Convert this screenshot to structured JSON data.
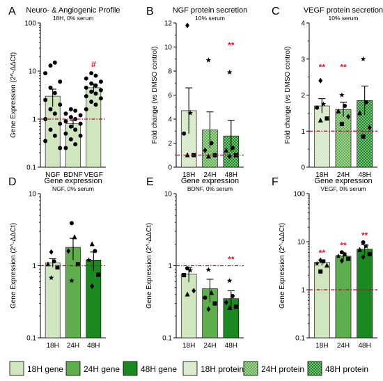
{
  "colors": {
    "g18": "#cfe6bf",
    "g24": "#5fae4d",
    "g48": "#1a8a20",
    "red": "#e8102a",
    "ref": "#a0103a",
    "ink": "#000000"
  },
  "legend": [
    {
      "label": "18H gene",
      "color": "g18",
      "pattern": false
    },
    {
      "label": "24H gene",
      "color": "g24",
      "pattern": false
    },
    {
      "label": "48H gene",
      "color": "g48",
      "pattern": false
    },
    {
      "label": "18H protein",
      "color": "g18",
      "pattern": true
    },
    {
      "label": "24H protein",
      "color": "g24",
      "pattern": true
    },
    {
      "label": "48H protein",
      "color": "g48",
      "pattern": true
    }
  ],
  "chart_data": [
    {
      "panel": "A",
      "type": "bar",
      "scale": "log",
      "title": "Neuro- & Angiogenic Profile",
      "subtitle": "18H, 0% serum",
      "ylabel": "Gene Expression (2^-ΔΔCt)",
      "ylim": [
        0.1,
        100
      ],
      "yticks": [
        "0.1",
        "1",
        "10",
        "100"
      ],
      "reference_line": 1,
      "categories": [
        "NGF",
        "BDNF",
        "VEGF"
      ],
      "values": [
        3.0,
        0.8,
        4.5
      ],
      "errors": [
        1.2,
        0.15,
        0.9
      ],
      "fills": [
        "g18",
        "g18",
        "g18"
      ],
      "patterns": [
        false,
        false,
        false
      ],
      "annotations": [
        "",
        "",
        "#"
      ],
      "points": [
        [
          {
            "v": 13,
            "m": "dot"
          },
          {
            "v": 15,
            "m": "dot"
          },
          {
            "v": 9,
            "m": "dot"
          },
          {
            "v": 6,
            "m": "dot"
          },
          {
            "v": 4.5,
            "m": "dot"
          },
          {
            "v": 3.5,
            "m": "dot"
          },
          {
            "v": 2.5,
            "m": "dot"
          },
          {
            "v": 2,
            "m": "dot"
          },
          {
            "v": 1.6,
            "m": "dot"
          },
          {
            "v": 1.3,
            "m": "dot"
          },
          {
            "v": 1.0,
            "m": "dot"
          },
          {
            "v": 0.8,
            "m": "dot"
          },
          {
            "v": 0.6,
            "m": "dot"
          },
          {
            "v": 0.45,
            "m": "dot"
          },
          {
            "v": 0.35,
            "m": "dot"
          },
          {
            "v": 0.25,
            "m": "dot"
          }
        ],
        [
          {
            "v": 1.6,
            "m": "dot"
          },
          {
            "v": 1.5,
            "m": "dot"
          },
          {
            "v": 1.3,
            "m": "dot"
          },
          {
            "v": 1.2,
            "m": "dot"
          },
          {
            "v": 1.1,
            "m": "dot"
          },
          {
            "v": 1.0,
            "m": "dot"
          },
          {
            "v": 0.9,
            "m": "dot"
          },
          {
            "v": 0.8,
            "m": "dot"
          },
          {
            "v": 0.7,
            "m": "dot"
          },
          {
            "v": 0.6,
            "m": "dot"
          },
          {
            "v": 0.5,
            "m": "dot"
          },
          {
            "v": 0.45,
            "m": "dot"
          },
          {
            "v": 0.38,
            "m": "dot"
          },
          {
            "v": 0.3,
            "m": "dot"
          },
          {
            "v": 0.25,
            "m": "dot"
          }
        ],
        [
          {
            "v": 9,
            "m": "dot"
          },
          {
            "v": 8,
            "m": "dot"
          },
          {
            "v": 7,
            "m": "dot"
          },
          {
            "v": 6,
            "m": "dot"
          },
          {
            "v": 5.5,
            "m": "dot"
          },
          {
            "v": 5,
            "m": "dot"
          },
          {
            "v": 4.5,
            "m": "dot"
          },
          {
            "v": 4,
            "m": "dot"
          },
          {
            "v": 3.7,
            "m": "dot"
          },
          {
            "v": 3.4,
            "m": "dot"
          },
          {
            "v": 3,
            "m": "dot"
          },
          {
            "v": 2.7,
            "m": "dot"
          },
          {
            "v": 2.3,
            "m": "dot"
          },
          {
            "v": 2,
            "m": "dot"
          },
          {
            "v": 1.6,
            "m": "dot"
          }
        ]
      ]
    },
    {
      "panel": "B",
      "type": "bar",
      "scale": "linear",
      "title": "NGF protein secretion",
      "subtitle": "10% serum",
      "ylabel": "Fold change (vs DMSO control)",
      "ylim": [
        0,
        12
      ],
      "yticks": [
        "0",
        "2",
        "4",
        "6",
        "8",
        "10",
        "12"
      ],
      "reference_line": 1,
      "categories": [
        "18H",
        "24H",
        "48H"
      ],
      "values": [
        4.7,
        3.1,
        2.6
      ],
      "errors": [
        1.9,
        1.5,
        1.3
      ],
      "fills": [
        "g18",
        "g24",
        "g48"
      ],
      "patterns": [
        true,
        true,
        true
      ],
      "annotations": [
        "",
        "",
        "**"
      ],
      "points": [
        [
          {
            "v": 11.8,
            "m": "diamond"
          },
          {
            "v": 4.5,
            "m": "star"
          },
          {
            "v": 2.8,
            "m": "dot"
          },
          {
            "v": 1.0,
            "m": "square"
          },
          {
            "v": 1.0,
            "m": "triangle"
          }
        ],
        [
          {
            "v": 8.9,
            "m": "star"
          },
          {
            "v": 2.0,
            "m": "dot"
          },
          {
            "v": 1.4,
            "m": "diamond"
          },
          {
            "v": 1.0,
            "m": "square"
          },
          {
            "v": 0.9,
            "m": "triangle"
          }
        ],
        [
          {
            "v": 7.9,
            "m": "star"
          },
          {
            "v": 1.6,
            "m": "dot"
          },
          {
            "v": 1.4,
            "m": "triangle"
          },
          {
            "v": 1.0,
            "m": "square"
          },
          {
            "v": 0.9,
            "m": "diamond"
          }
        ]
      ]
    },
    {
      "panel": "C",
      "type": "bar",
      "scale": "linear",
      "title": "VEGF protein secretion",
      "subtitle": "10% serum",
      "ylabel": "Fold change (vs DMSO control)",
      "ylim": [
        0,
        4
      ],
      "yticks": [
        "0",
        "1",
        "2",
        "3",
        "4"
      ],
      "reference_line": 1,
      "categories": [
        "18H",
        "24H",
        "48H"
      ],
      "values": [
        1.7,
        1.6,
        1.85
      ],
      "errors": [
        0.2,
        0.2,
        0.4
      ],
      "fills": [
        "g18",
        "g24",
        "g48"
      ],
      "patterns": [
        true,
        true,
        true
      ],
      "annotations": [
        "**",
        "**",
        ""
      ],
      "points": [
        [
          {
            "v": 2.4,
            "m": "diamond"
          },
          {
            "v": 1.75,
            "m": "star"
          },
          {
            "v": 1.65,
            "m": "dot"
          },
          {
            "v": 1.35,
            "m": "square"
          },
          {
            "v": 1.3,
            "m": "triangle"
          }
        ],
        [
          {
            "v": 2.0,
            "m": "star"
          },
          {
            "v": 1.7,
            "m": "dot"
          },
          {
            "v": 1.55,
            "m": "triangle"
          },
          {
            "v": 1.4,
            "m": "diamond"
          },
          {
            "v": 1.2,
            "m": "square"
          }
        ],
        [
          {
            "v": 3.0,
            "m": "star"
          },
          {
            "v": 1.8,
            "m": "dot"
          },
          {
            "v": 1.5,
            "m": "triangle"
          },
          {
            "v": 1.1,
            "m": "diamond"
          },
          {
            "v": 0.85,
            "m": "square"
          }
        ]
      ]
    },
    {
      "panel": "D",
      "type": "bar",
      "scale": "log",
      "title": "Gene expression",
      "subtitle": "NGF, 0% serum",
      "ylabel": "Gene Expression (2^-ΔΔCt)",
      "ylim": [
        0.1,
        10
      ],
      "yticks": [
        "0.1",
        "1",
        "10"
      ],
      "reference_line": 1,
      "categories": [
        "18H",
        "24H",
        "48H"
      ],
      "values": [
        1.1,
        1.8,
        1.2
      ],
      "errors": [
        0.15,
        0.6,
        0.35
      ],
      "fills": [
        "g18",
        "g24",
        "g48"
      ],
      "patterns": [
        false,
        false,
        false
      ],
      "annotations": [
        "",
        "",
        ""
      ],
      "points": [
        [
          {
            "v": 1.55,
            "m": "diamond"
          },
          {
            "v": 1.15,
            "m": "dot"
          },
          {
            "v": 1.05,
            "m": "triangle"
          },
          {
            "v": 0.95,
            "m": "square"
          },
          {
            "v": 0.68,
            "m": "star"
          }
        ],
        [
          {
            "v": 3.9,
            "m": "dot"
          },
          {
            "v": 2.5,
            "m": "triangle"
          },
          {
            "v": 1.6,
            "m": "diamond"
          },
          {
            "v": 1.05,
            "m": "square"
          },
          {
            "v": 0.62,
            "m": "star"
          }
        ],
        [
          {
            "v": 2.0,
            "m": "triangle"
          },
          {
            "v": 1.6,
            "m": "dot"
          },
          {
            "v": 1.2,
            "m": "star"
          },
          {
            "v": 0.75,
            "m": "square"
          },
          {
            "v": 0.52,
            "m": "diamond"
          }
        ]
      ]
    },
    {
      "panel": "E",
      "type": "bar",
      "scale": "log",
      "title": "Gene expression",
      "subtitle": "BDNF, 0% serum",
      "ylabel": "Gene Expression (2^-ΔΔCt)",
      "ylim": [
        0.1,
        10
      ],
      "yticks": [
        "0.1",
        "1",
        "10"
      ],
      "reference_line": 1,
      "categories": [
        "18H",
        "24H",
        "48H"
      ],
      "values": [
        0.77,
        0.48,
        0.35
      ],
      "errors": [
        0.18,
        0.17,
        0.1
      ],
      "fills": [
        "g18",
        "g24",
        "g48"
      ],
      "patterns": [
        false,
        false,
        false
      ],
      "annotations": [
        "",
        "",
        "**"
      ],
      "points": [
        [
          {
            "v": 0.92,
            "m": "dot"
          },
          {
            "v": 0.86,
            "m": "star"
          },
          {
            "v": 0.74,
            "m": "square"
          },
          {
            "v": 0.45,
            "m": "diamond"
          },
          {
            "v": 0.4,
            "m": "triangle"
          }
        ],
        [
          {
            "v": 0.88,
            "m": "star"
          },
          {
            "v": 0.42,
            "m": "triangle"
          },
          {
            "v": 0.36,
            "m": "dot"
          },
          {
            "v": 0.3,
            "m": "square"
          },
          {
            "v": 0.25,
            "m": "diamond"
          }
        ],
        [
          {
            "v": 0.62,
            "m": "star"
          },
          {
            "v": 0.38,
            "m": "dot"
          },
          {
            "v": 0.31,
            "m": "diamond"
          },
          {
            "v": 0.27,
            "m": "square"
          },
          {
            "v": 0.26,
            "m": "triangle"
          }
        ]
      ]
    },
    {
      "panel": "F",
      "type": "bar",
      "scale": "log",
      "title": "Gene expression",
      "subtitle": "VEGF, 0% serum",
      "ylabel": "Gene Expression (2^-ΔΔCt)",
      "ylim": [
        0.1,
        100
      ],
      "yticks": [
        "0.1",
        "1",
        "10",
        "100"
      ],
      "reference_line": 1,
      "categories": [
        "18H",
        "24H",
        "48H"
      ],
      "values": [
        3.7,
        5.0,
        7.0
      ],
      "errors": [
        0.5,
        0.8,
        1.6
      ],
      "fills": [
        "g18",
        "g24",
        "g48"
      ],
      "patterns": [
        false,
        false,
        false
      ],
      "annotations": [
        "**",
        "**",
        "**"
      ],
      "points": [
        [
          {
            "v": 4.1,
            "m": "diamond"
          },
          {
            "v": 3.9,
            "m": "dot"
          },
          {
            "v": 3.5,
            "m": "star"
          },
          {
            "v": 3.2,
            "m": "triangle"
          },
          {
            "v": 2.4,
            "m": "square"
          }
        ],
        [
          {
            "v": 6.0,
            "m": "dot"
          },
          {
            "v": 5.5,
            "m": "triangle"
          },
          {
            "v": 5.0,
            "m": "star"
          },
          {
            "v": 4.4,
            "m": "square"
          },
          {
            "v": 4.0,
            "m": "diamond"
          }
        ],
        [
          {
            "v": 9.7,
            "m": "dot"
          },
          {
            "v": 8.0,
            "m": "star"
          },
          {
            "v": 6.8,
            "m": "triangle"
          },
          {
            "v": 5.5,
            "m": "square"
          },
          {
            "v": 4.8,
            "m": "diamond"
          }
        ]
      ]
    }
  ]
}
